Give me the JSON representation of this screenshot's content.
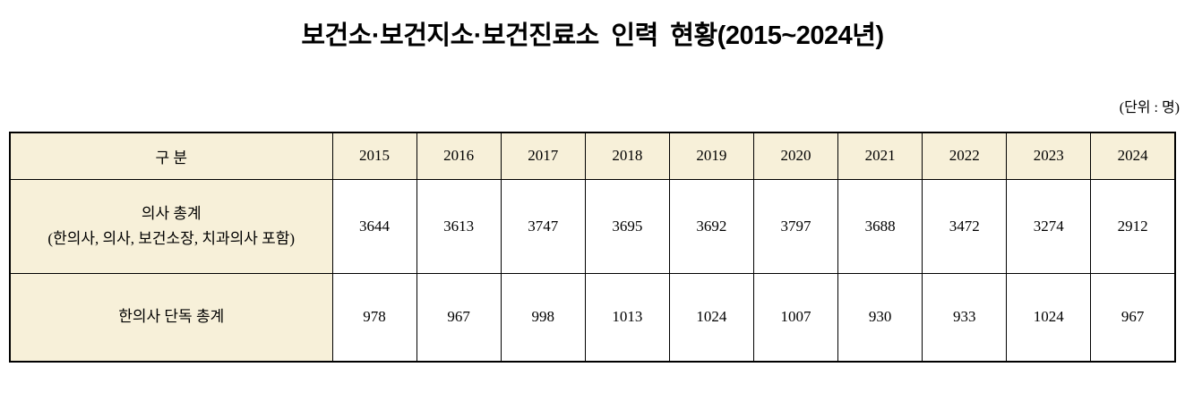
{
  "title": "보건소·보건지소·보건진료소 인력 현황(2015~2024년)",
  "unit_label": "(단위 : 명)",
  "colors": {
    "header_background": "#F7F0D9",
    "cell_background": "#FFFFFF",
    "border": "#000000",
    "text": "#000000"
  },
  "table": {
    "corner_header": "구 분",
    "years": [
      "2015",
      "2016",
      "2017",
      "2018",
      "2019",
      "2020",
      "2021",
      "2022",
      "2023",
      "2024"
    ],
    "rows": [
      {
        "label_line1": "의사 총계",
        "label_line2": "(한의사, 의사, 보건소장, 치과의사 포함)",
        "values": [
          "3644",
          "3613",
          "3747",
          "3695",
          "3692",
          "3797",
          "3688",
          "3472",
          "3274",
          "2912"
        ]
      },
      {
        "label_line1": "한의사 단독 총계",
        "label_line2": "",
        "values": [
          "978",
          "967",
          "998",
          "1013",
          "1024",
          "1007",
          "930",
          "933",
          "1024",
          "967"
        ]
      }
    ]
  }
}
